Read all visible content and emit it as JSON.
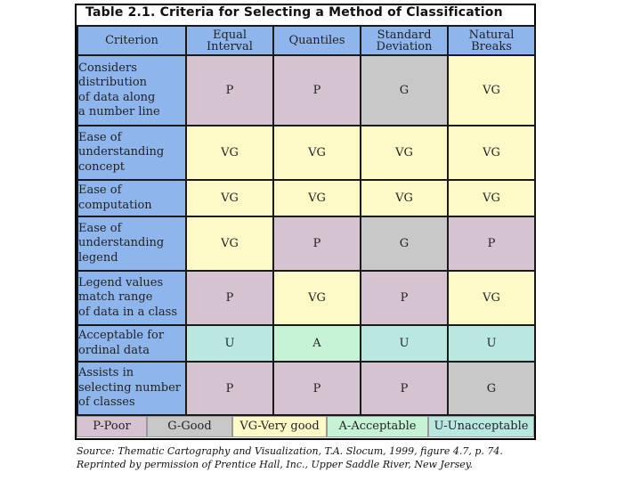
{
  "title": "Table 2.1. Criteria for Selecting a Method of Classification",
  "headers": [
    "Criterion",
    "Equal\nInterval",
    "Quantiles",
    "Standard\nDeviation",
    "Natural\nBreaks"
  ],
  "rows": [
    {
      "criterion": [
        "Considers",
        "distribution",
        "of data along",
        "a number line"
      ],
      "values": [
        "P",
        "P",
        "G",
        "VG"
      ]
    },
    {
      "criterion": [
        "Ease of",
        "understanding",
        "concept"
      ],
      "values": [
        "VG",
        "VG",
        "VG",
        "VG"
      ]
    },
    {
      "criterion": [
        "Ease of",
        "computation"
      ],
      "values": [
        "VG",
        "VG",
        "VG",
        "VG"
      ]
    },
    {
      "criterion": [
        "Ease of",
        "understanding",
        "legend"
      ],
      "values": [
        "VG",
        "P",
        "G",
        "P"
      ]
    },
    {
      "criterion": [
        "Legend values",
        "match range",
        "of data in a class"
      ],
      "values": [
        "P",
        "VG",
        "P",
        "VG"
      ]
    },
    {
      "criterion": [
        "Acceptable for",
        "ordinal data"
      ],
      "values": [
        "U",
        "A",
        "U",
        "U"
      ]
    },
    {
      "criterion": [
        "Assists in",
        "selecting number",
        "of classes"
      ],
      "values": [
        "P",
        "P",
        "P",
        "G"
      ]
    }
  ],
  "legend": [
    {
      "code": "P",
      "label": "P-Poor"
    },
    {
      "code": "G",
      "label": "G-Good"
    },
    {
      "code": "VG",
      "label": "VG-Very good"
    },
    {
      "code": "A",
      "label": "A-Acceptable"
    },
    {
      "code": "U",
      "label": "U-Unacceptable"
    }
  ],
  "colors": {
    "P": "#d6c3d2",
    "G": "#c8c8c8",
    "VG": "#fdfac8",
    "A": "#c6f3d6",
    "U": "#b9e8e0",
    "header": "#8fb6ec"
  },
  "source": [
    "Source: Thematic Cartography and Visualization, T.A. Slocum, 1999, figure 4.7, p. 74.",
    "Reprinted by permission of Prentice Hall, Inc., Upper Saddle River, New Jersey."
  ]
}
